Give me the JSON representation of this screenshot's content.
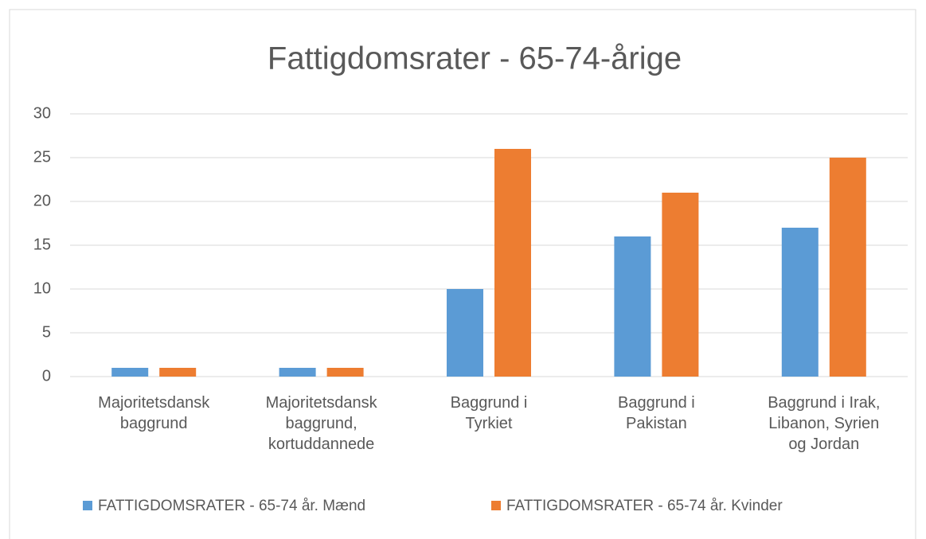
{
  "chart_data": {
    "type": "bar",
    "title": "Fattigdomsrater - 65-74-årige",
    "categories": [
      "Majoritetsdansk\nbaggrund",
      "Majoritetsdansk\nbaggrund,\nkortuddannede",
      "Baggrund i\nTyrkiet",
      "Baggrund i\nPakistan",
      "Baggrund i Irak,\nLibanon, Syrien\nog Jordan"
    ],
    "series": [
      {
        "name": "FATTIGDOMSRATER - 65-74 år. Mænd",
        "color": "#5b9bd5",
        "values": [
          1,
          1,
          10,
          16,
          17
        ]
      },
      {
        "name": "FATTIGDOMSRATER - 65-74 år. Kvinder",
        "color": "#ed7d31",
        "values": [
          1,
          1,
          26,
          21,
          25
        ]
      }
    ],
    "ylim": [
      0,
      30
    ],
    "yticks": [
      0,
      5,
      10,
      15,
      20,
      25,
      30
    ],
    "grid": true,
    "legend": "bottom"
  }
}
